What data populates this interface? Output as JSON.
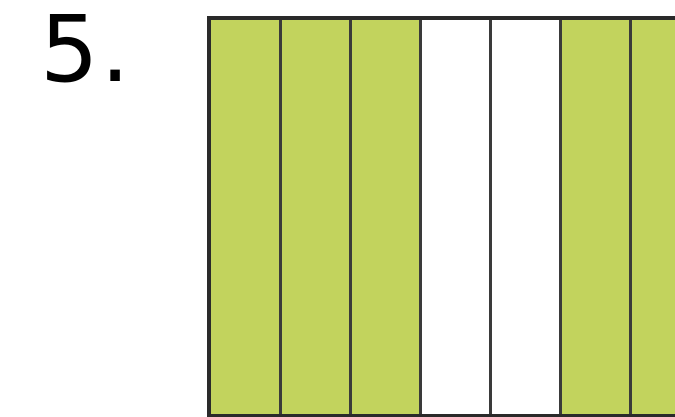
{
  "problem": {
    "number_label": "5."
  },
  "fraction_model": {
    "strips": [
      {
        "shaded": true
      },
      {
        "shaded": true
      },
      {
        "shaded": true
      },
      {
        "shaded": false
      },
      {
        "shaded": false
      },
      {
        "shaded": true
      },
      {
        "shaded": true
      }
    ],
    "shaded_color": "#c2d35d",
    "unshaded_color": "#ffffff"
  }
}
